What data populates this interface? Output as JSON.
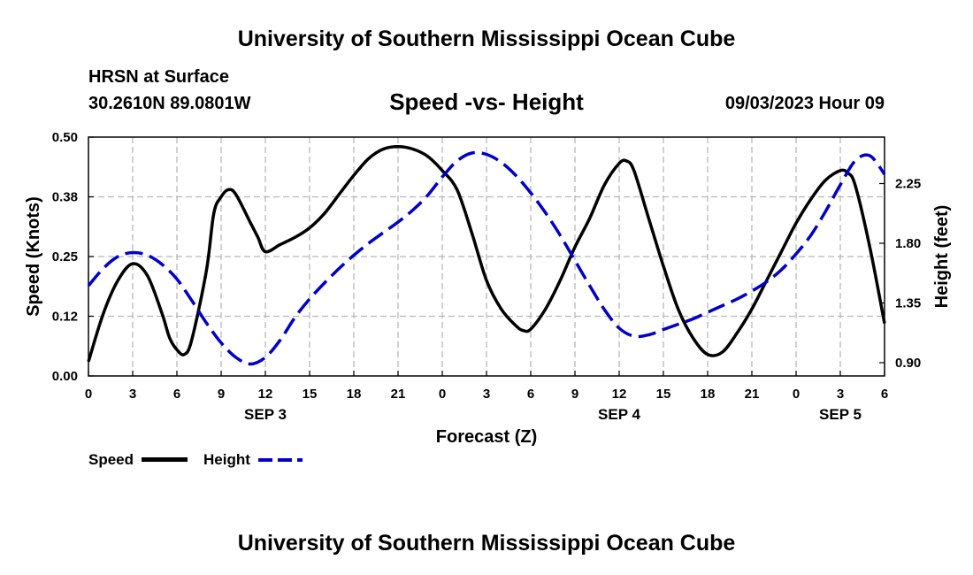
{
  "header": {
    "title_top": "University of Southern Mississippi Ocean Cube",
    "title_bottom": "University of Southern Mississippi Ocean Cube",
    "station": "HRSN at Surface",
    "location": "30.2610N  89.0801W",
    "datetime": "09/03/2023 Hour 09"
  },
  "chart_data": {
    "type": "line",
    "title": "Speed -vs- Height",
    "xlabel": "Forecast (Z)",
    "ylabel": "Speed (Knots)",
    "ylabel_right": "Height (feet)",
    "x_unit": "hours since SEP 3 00Z",
    "xlim": [
      0,
      54
    ],
    "ylim": [
      0,
      0.5
    ],
    "ylim_right": [
      0.8,
      2.6
    ],
    "x_ticks": [
      0,
      3,
      6,
      9,
      12,
      15,
      18,
      21,
      24,
      27,
      30,
      33,
      36,
      39,
      42,
      45,
      48,
      51,
      54
    ],
    "x_tick_labels": [
      "0",
      "3",
      "6",
      "9",
      "12",
      "15",
      "18",
      "21",
      "0",
      "3",
      "6",
      "9",
      "12",
      "15",
      "18",
      "21",
      "0",
      "3",
      "6"
    ],
    "date_labels": [
      {
        "label": "SEP 3",
        "x": 12
      },
      {
        "label": "SEP 4",
        "x": 36
      },
      {
        "label": "SEP 5",
        "x": 51
      }
    ],
    "y_ticks": [
      "0.00",
      "0.12",
      "0.25",
      "0.38",
      "0.50"
    ],
    "y_tick_values": [
      0,
      0.125,
      0.25,
      0.375,
      0.5
    ],
    "y_ticks_right": [
      "0.90",
      "1.35",
      "1.80",
      "2.25"
    ],
    "y_tick_values_right": [
      0.9,
      1.35,
      1.8,
      2.25
    ],
    "grid": true,
    "legend_position": "bottom-left",
    "series": [
      {
        "name": "Speed",
        "axis": "left",
        "style": "solid",
        "color": "#000000",
        "x": [
          0,
          1,
          2,
          3,
          4,
          5,
          5.5,
          6,
          6.5,
          7,
          8,
          8.5,
          9,
          9.5,
          10,
          11,
          11.5,
          12,
          13,
          14,
          15,
          16,
          17,
          18,
          19,
          20,
          21,
          22,
          23,
          24,
          25,
          26,
          27,
          28,
          29,
          29.5,
          30,
          31,
          32,
          33,
          34,
          35,
          36,
          36.5,
          37,
          38,
          39,
          40,
          41,
          42,
          43,
          44,
          45,
          46,
          47,
          48,
          49,
          50,
          51,
          51.5,
          52,
          53,
          54
        ],
        "values": [
          0.03,
          0.13,
          0.2,
          0.235,
          0.21,
          0.13,
          0.08,
          0.055,
          0.045,
          0.075,
          0.22,
          0.34,
          0.375,
          0.39,
          0.38,
          0.32,
          0.29,
          0.26,
          0.275,
          0.29,
          0.31,
          0.34,
          0.38,
          0.42,
          0.455,
          0.475,
          0.48,
          0.475,
          0.46,
          0.43,
          0.39,
          0.3,
          0.2,
          0.14,
          0.105,
          0.095,
          0.098,
          0.14,
          0.2,
          0.27,
          0.33,
          0.4,
          0.445,
          0.45,
          0.43,
          0.33,
          0.23,
          0.14,
          0.08,
          0.045,
          0.05,
          0.09,
          0.14,
          0.2,
          0.26,
          0.32,
          0.37,
          0.41,
          0.43,
          0.425,
          0.4,
          0.27,
          0.11
        ]
      },
      {
        "name": "Height",
        "axis": "right",
        "style": "dashed",
        "color": "#0000cc",
        "x": [
          0,
          1,
          2,
          3,
          4,
          5,
          6,
          7,
          8,
          9,
          10,
          11,
          12,
          13,
          14,
          15,
          16,
          17,
          18,
          19,
          20,
          21,
          22,
          23,
          24,
          25,
          26,
          27,
          28,
          29,
          30,
          31,
          32,
          33,
          34,
          35,
          36,
          37,
          38,
          39,
          40,
          41,
          42,
          43,
          44,
          45,
          46,
          47,
          48,
          49,
          50,
          51,
          52,
          53,
          54
        ],
        "values": [
          1.48,
          1.61,
          1.7,
          1.73,
          1.71,
          1.64,
          1.53,
          1.37,
          1.2,
          1.05,
          0.94,
          0.89,
          0.94,
          1.07,
          1.24,
          1.38,
          1.5,
          1.61,
          1.71,
          1.8,
          1.88,
          1.96,
          2.05,
          2.16,
          2.3,
          2.42,
          2.48,
          2.47,
          2.41,
          2.31,
          2.18,
          2.03,
          1.86,
          1.67,
          1.48,
          1.3,
          1.16,
          1.1,
          1.11,
          1.15,
          1.19,
          1.23,
          1.28,
          1.33,
          1.38,
          1.44,
          1.51,
          1.6,
          1.72,
          1.86,
          2.04,
          2.24,
          2.42,
          2.46,
          2.32
        ]
      }
    ]
  }
}
